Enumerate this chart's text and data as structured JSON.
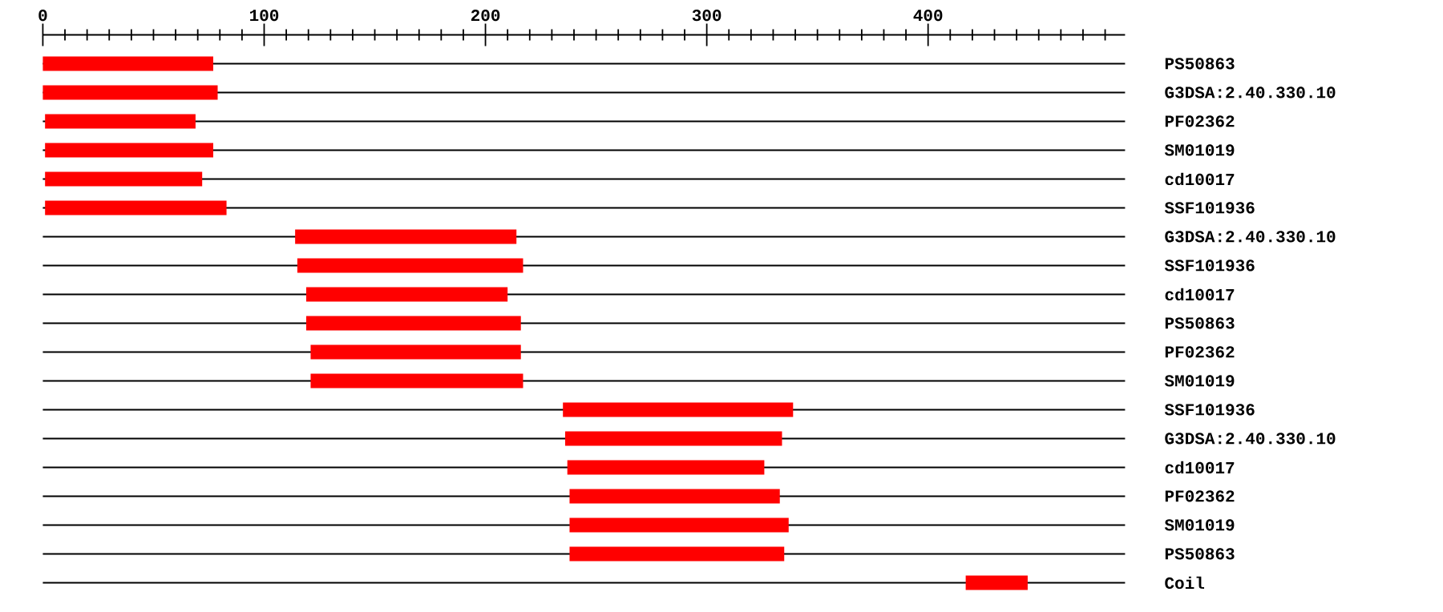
{
  "chart_data": {
    "type": "bar",
    "orientation": "horizontal",
    "color": "#ff0000",
    "grid": "y",
    "categories": [
      "PS50863",
      "G3DSA:2.40.330.10",
      "PF02362",
      "SM01019",
      "cd10017",
      "SSF101936",
      "G3DSA:2.40.330.10",
      "SSF101936",
      "cd10017",
      "PS50863",
      "PF02362",
      "SM01019",
      "SSF101936",
      "G3DSA:2.40.330.10",
      "cd10017",
      "PF02362",
      "SM01019",
      "PS50863",
      "Coil"
    ],
    "base": [
      0,
      0,
      1,
      1,
      1,
      1,
      114,
      115,
      119,
      119,
      121,
      121,
      235,
      236,
      237,
      238,
      238,
      238,
      417
    ],
    "values": [
      77,
      79,
      68,
      76,
      71,
      82,
      100,
      102,
      91,
      97,
      95,
      96,
      104,
      98,
      89,
      95,
      99,
      97,
      28
    ],
    "xlim": [
      0,
      489
    ],
    "xticks": [
      0,
      {
        "value": 10,
        "label": null
      },
      {
        "value": 20,
        "label": null
      },
      {
        "value": 30,
        "label": null
      },
      {
        "value": 40,
        "label": null
      },
      {
        "value": 50,
        "label": null
      },
      {
        "value": 60,
        "label": null
      },
      {
        "value": 70,
        "label": null
      },
      {
        "value": 80,
        "label": null
      },
      {
        "value": 90,
        "label": null
      },
      100,
      {
        "value": 110,
        "label": null
      },
      {
        "value": 120,
        "label": null
      },
      {
        "value": 130,
        "label": null
      },
      {
        "value": 140,
        "label": null
      },
      {
        "value": 150,
        "label": null
      },
      {
        "value": 160,
        "label": null
      },
      {
        "value": 170,
        "label": null
      },
      {
        "value": 180,
        "label": null
      },
      {
        "value": 190,
        "label": null
      },
      200,
      {
        "value": 210,
        "label": null
      },
      {
        "value": 220,
        "label": null
      },
      {
        "value": 230,
        "label": null
      },
      {
        "value": 240,
        "label": null
      },
      {
        "value": 250,
        "label": null
      },
      {
        "value": 260,
        "label": null
      },
      {
        "value": 270,
        "label": null
      },
      {
        "value": 280,
        "label": null
      },
      {
        "value": 290,
        "label": null
      },
      300,
      {
        "value": 310,
        "label": null
      },
      {
        "value": 320,
        "label": null
      },
      {
        "value": 330,
        "label": null
      },
      {
        "value": 340,
        "label": null
      },
      {
        "value": 350,
        "label": null
      },
      {
        "value": 360,
        "label": null
      },
      {
        "value": 370,
        "label": null
      },
      {
        "value": 380,
        "label": null
      },
      {
        "value": 390,
        "label": null
      },
      400,
      {
        "value": 410,
        "label": null
      },
      {
        "value": 420,
        "label": null
      },
      {
        "value": 430,
        "label": null
      },
      {
        "value": 440,
        "label": null
      },
      {
        "value": 450,
        "label": null
      },
      {
        "value": 460,
        "label": null
      },
      {
        "value": 470,
        "label": null
      },
      {
        "value": 480,
        "label": null
      }
    ]
  }
}
